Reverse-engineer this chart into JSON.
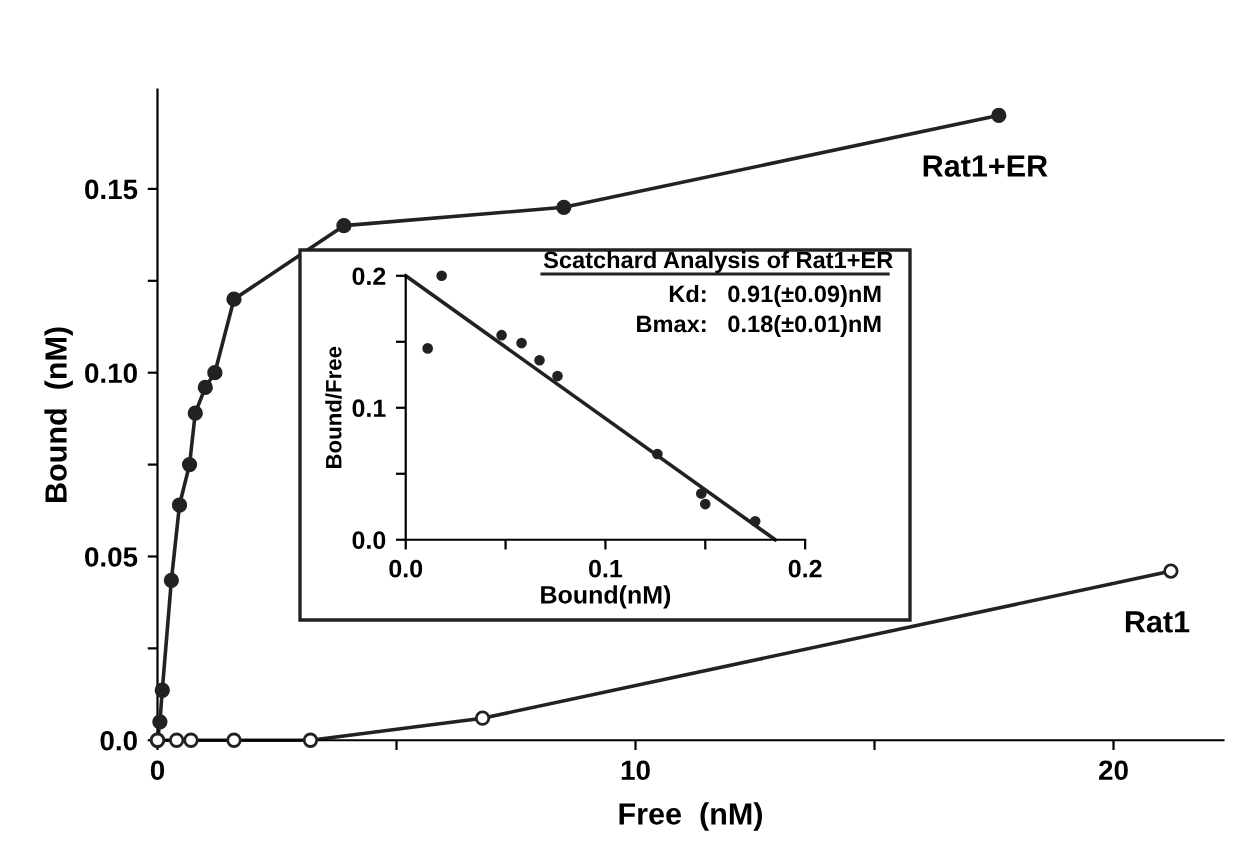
{
  "chart_data": [
    {
      "type": "line",
      "xlabel": "Free  (nM)",
      "ylabel": "Bound  (nM)",
      "xlim": [
        0,
        22.3
      ],
      "ylim": [
        0,
        0.177
      ],
      "xticks": [
        0,
        {
          "value": 5,
          "label": null
        },
        10,
        {
          "value": 15,
          "label": null
        },
        20
      ],
      "yticks": [
        {
          "value": 0,
          "label": "0.0"
        },
        {
          "value": 0.025,
          "label": null
        },
        0.05,
        {
          "value": 0.075,
          "label": null
        },
        {
          "value": 0.1,
          "label": "0.10"
        },
        {
          "value": 0.125,
          "label": null
        },
        0.15
      ],
      "grid": false,
      "legend": false,
      "marker": "circle",
      "line_style": "solid",
      "series": [
        {
          "name": "Rat1+ER",
          "color": "#222222",
          "x": [
            0,
            0.05,
            0.1,
            0.29,
            0.46,
            0.67,
            0.79,
            1.0,
            1.2,
            1.6,
            3.9,
            8.5,
            17.6
          ],
          "values": [
            0,
            0.005,
            0.0136,
            0.0435,
            0.064,
            0.075,
            0.089,
            0.096,
            0.1,
            0.12,
            0.14,
            0.145,
            0.17
          ]
        },
        {
          "name": "Rat1",
          "color": "#222222",
          "x": [
            0,
            0.4,
            0.7,
            1.6,
            3.2,
            6.8,
            21.2
          ],
          "values": [
            0,
            0,
            0,
            0,
            0,
            0.006,
            0.046
          ]
        }
      ]
    },
    {
      "type": "scatter",
      "title": "Scatchard Analysis of Rat1+ER",
      "xlabel": "Bound(nM)",
      "ylabel": "Bound/Free",
      "xlim": [
        0,
        0.2
      ],
      "ylim": [
        0,
        0.2
      ],
      "xticks": [
        {
          "value": 0,
          "label": "0.0"
        },
        {
          "value": 0.05,
          "label": null
        },
        0.1,
        {
          "value": 0.15,
          "label": null
        },
        0.2
      ],
      "yticks": [
        {
          "value": 0,
          "label": "0.0"
        },
        {
          "value": 0.05,
          "label": null
        },
        0.1,
        {
          "value": 0.15,
          "label": null
        },
        0.2
      ],
      "grid": false,
      "annotations": [
        "Kd:   0.91(±0.09)nM",
        "Bmax:   0.18(±0.01)nM"
      ],
      "series": [
        {
          "color": "#222222",
          "marker": "circle",
          "x": [
            0.011,
            0.018,
            0.048,
            0.058,
            0.067,
            0.076,
            0.126,
            0.148,
            0.15,
            0.175
          ],
          "values": [
            0.145,
            0.2,
            0.155,
            0.149,
            0.136,
            0.124,
            0.065,
            0.035,
            0.027,
            0.014
          ]
        },
        {
          "type": "line",
          "color": "#222222",
          "x": [
            0,
            0.185
          ],
          "values": [
            0.2,
            0
          ]
        }
      ]
    }
  ]
}
